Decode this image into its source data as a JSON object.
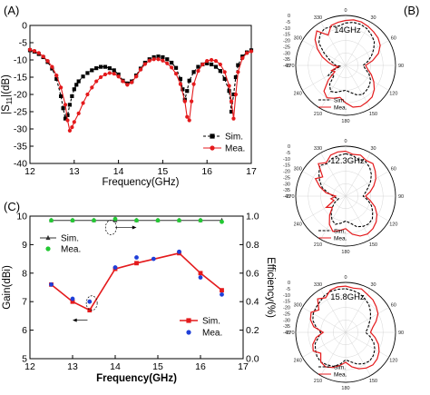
{
  "panels": {
    "a": "(A)",
    "b": "(B)",
    "c": "(C)"
  },
  "colors": {
    "sim": "#000000",
    "mea": "#e41a1c",
    "mea_gain": "#1f3fd8",
    "mea_eff": "#22c832",
    "sim_eff": "#333333"
  },
  "chart_data": [
    {
      "type": "line",
      "panel": "(A)",
      "xlabel": "Frequency(GHz)",
      "ylabel": "|S11|(dB)",
      "ylabel_main": "|S",
      "ylabel_sub": "11",
      "ylabel_tail": "|(dB)",
      "xlim": [
        12,
        17
      ],
      "ylim": [
        -40,
        0
      ],
      "xticks": [
        "12",
        "13",
        "14",
        "15",
        "16",
        "17"
      ],
      "yticks": [
        "0",
        "-5",
        "-10",
        "-15",
        "-20",
        "-25",
        "-30",
        "-35",
        "-40"
      ],
      "legend": "bottom-right",
      "series": [
        {
          "name": "Sim.",
          "marker": "square",
          "x": [
            12.0,
            12.1,
            12.2,
            12.3,
            12.4,
            12.5,
            12.6,
            12.7,
            12.75,
            12.8,
            12.85,
            12.9,
            12.95,
            13.0,
            13.05,
            13.1,
            13.2,
            13.3,
            13.4,
            13.5,
            13.6,
            13.7,
            13.8,
            13.9,
            14.0,
            14.1,
            14.2,
            14.3,
            14.4,
            14.5,
            14.6,
            14.7,
            14.8,
            14.9,
            15.0,
            15.1,
            15.2,
            15.3,
            15.4,
            15.45,
            15.5,
            15.55,
            15.6,
            15.7,
            15.8,
            15.9,
            16.0,
            16.1,
            16.2,
            16.3,
            16.4,
            16.5,
            16.55,
            16.6,
            16.65,
            16.7,
            16.8,
            16.9,
            17.0
          ],
          "y": [
            -7.2,
            -7.6,
            -8.3,
            -9.2,
            -10.6,
            -12.5,
            -15.5,
            -20.5,
            -24.0,
            -27.0,
            -26.0,
            -23.0,
            -20.5,
            -18.5,
            -17.2,
            -16.2,
            -14.8,
            -13.8,
            -13.0,
            -12.4,
            -12.0,
            -12.0,
            -12.4,
            -13.0,
            -14.2,
            -16.0,
            -16.8,
            -16.2,
            -14.5,
            -12.5,
            -10.8,
            -9.8,
            -9.2,
            -9.0,
            -9.2,
            -9.8,
            -10.8,
            -12.3,
            -15.5,
            -18.5,
            -21.5,
            -19.0,
            -16.0,
            -13.5,
            -12.0,
            -11.3,
            -11.0,
            -11.3,
            -12.0,
            -13.2,
            -15.5,
            -19.0,
            -25.0,
            -20.0,
            -15.0,
            -11.5,
            -9.0,
            -7.8,
            -7.2
          ]
        },
        {
          "name": "Mea.",
          "marker": "circle",
          "x": [
            12.0,
            12.1,
            12.2,
            12.3,
            12.4,
            12.5,
            12.6,
            12.7,
            12.8,
            12.85,
            12.9,
            12.95,
            13.0,
            13.1,
            13.2,
            13.3,
            13.4,
            13.5,
            13.6,
            13.7,
            13.8,
            13.9,
            14.0,
            14.1,
            14.2,
            14.3,
            14.4,
            14.5,
            14.6,
            14.7,
            14.8,
            14.9,
            15.0,
            15.1,
            15.2,
            15.3,
            15.4,
            15.5,
            15.55,
            15.6,
            15.65,
            15.7,
            15.8,
            15.9,
            16.0,
            16.1,
            16.2,
            16.3,
            16.4,
            16.5,
            16.55,
            16.6,
            16.65,
            16.7,
            16.8,
            16.9,
            17.0
          ],
          "y": [
            -7.0,
            -7.4,
            -8.0,
            -9.0,
            -10.3,
            -12.0,
            -14.5,
            -18.0,
            -23.0,
            -27.5,
            -30.5,
            -29.5,
            -28.0,
            -25.5,
            -22.5,
            -20.0,
            -18.0,
            -16.2,
            -15.0,
            -14.2,
            -13.8,
            -14.0,
            -14.8,
            -16.2,
            -17.2,
            -16.5,
            -14.8,
            -12.8,
            -11.2,
            -10.2,
            -9.8,
            -9.8,
            -10.2,
            -11.0,
            -12.2,
            -14.0,
            -17.0,
            -22.0,
            -26.5,
            -27.5,
            -22.0,
            -17.0,
            -13.2,
            -11.3,
            -10.3,
            -10.0,
            -10.3,
            -11.3,
            -13.5,
            -17.5,
            -22.0,
            -27.0,
            -20.0,
            -13.5,
            -9.5,
            -8.0,
            -7.5
          ]
        }
      ]
    },
    {
      "type": "line",
      "panel": "(C)",
      "xlabel": "Frequency(GHz)",
      "ylabel": "Gain(dBi)",
      "ylabel_right": "Efficiency(%)",
      "xlim": [
        12,
        17
      ],
      "ylim": [
        5,
        10
      ],
      "ylim_right": [
        0.0,
        1.0
      ],
      "xticks": [
        "12",
        "13",
        "14",
        "15",
        "16",
        "17"
      ],
      "yticks": [
        "10",
        "9",
        "8",
        "7",
        "6",
        "5"
      ],
      "yticks_right": [
        "1.0",
        "0.8",
        "0.6",
        "0.4",
        "0.2",
        "0.0"
      ],
      "legend_gain": "bottom-right",
      "legend_eff": "top-left",
      "series": [
        {
          "name": "Sim.",
          "axis": "left",
          "marker": "square",
          "x": [
            12.5,
            13.0,
            13.4,
            14.0,
            14.5,
            15.5,
            16.0,
            16.5
          ],
          "y": [
            7.6,
            7.0,
            6.7,
            8.15,
            8.35,
            8.7,
            8.0,
            7.4
          ]
        },
        {
          "name": "Mea.",
          "axis": "left",
          "marker": "circle",
          "x": [
            12.5,
            13.0,
            13.4,
            14.0,
            14.5,
            14.9,
            15.5,
            16.0,
            16.5
          ],
          "y": [
            7.6,
            7.1,
            7.0,
            8.2,
            8.55,
            8.5,
            8.75,
            7.85,
            7.25
          ]
        },
        {
          "name": "Sim.",
          "axis": "right",
          "marker": "triangle",
          "x": [
            12.5,
            13.0,
            13.5,
            14.0,
            14.5,
            15.0,
            15.5,
            16.0,
            16.5
          ],
          "y": [
            0.97,
            0.97,
            0.97,
            0.97,
            0.97,
            0.97,
            0.97,
            0.97,
            0.97
          ]
        },
        {
          "name": "Mea.",
          "axis": "right",
          "marker": "circle",
          "x": [
            12.5,
            13.0,
            13.5,
            14.0,
            14.5,
            15.0,
            15.5,
            16.0,
            16.5
          ],
          "y": [
            0.97,
            0.97,
            0.97,
            0.98,
            0.97,
            0.97,
            0.97,
            0.97,
            0.96
          ]
        }
      ]
    },
    {
      "type": "polar",
      "panel": "(B)",
      "title": "14GHz",
      "rlim": [
        -40,
        0
      ],
      "rticks": [
        "0",
        "-5",
        "-10",
        "-15",
        "-20",
        "-25",
        "-30",
        "-35",
        "-40"
      ],
      "angle_ticks": [
        "0",
        "30",
        "60",
        "90",
        "120",
        "150",
        "180",
        "210",
        "240",
        "270",
        "300",
        "330"
      ],
      "series": [
        {
          "name": "Sim.",
          "angles": [
            0,
            10,
            20,
            30,
            40,
            50,
            60,
            70,
            80,
            90,
            100,
            110,
            120,
            130,
            140,
            150,
            160,
            170,
            180,
            190,
            200,
            210,
            220,
            230,
            240,
            250,
            260,
            270,
            280,
            290,
            300,
            310,
            320,
            330,
            340,
            350
          ],
          "values": [
            -6,
            -5,
            -5,
            -6,
            -8,
            -10,
            -14,
            -18,
            -22,
            -26,
            -24,
            -20,
            -17,
            -15,
            -14,
            -13,
            -15,
            -18,
            -20,
            -19,
            -17,
            -16,
            -20,
            -28,
            -24,
            -30,
            -36,
            -32,
            -30,
            -26,
            -20,
            -12,
            -8,
            -6,
            -7,
            -8
          ]
        },
        {
          "name": "Mea.",
          "angles": [
            0,
            10,
            20,
            30,
            40,
            50,
            60,
            70,
            80,
            90,
            100,
            110,
            120,
            130,
            140,
            150,
            160,
            170,
            180,
            190,
            200,
            210,
            220,
            230,
            240,
            250,
            260,
            270,
            280,
            290,
            300,
            310,
            320,
            330,
            340,
            350
          ],
          "values": [
            -4,
            -3,
            -3,
            -4,
            -5,
            -6,
            -8,
            -12,
            -18,
            -24,
            -22,
            -18,
            -14,
            -10,
            -7,
            -6,
            -5,
            -6,
            -10,
            -14,
            -12,
            -10,
            -13,
            -22,
            -30,
            -28,
            -34,
            -30,
            -26,
            -20,
            -14,
            -8,
            -4,
            -12,
            -6,
            -5
          ]
        }
      ]
    },
    {
      "type": "polar",
      "panel": "(B)",
      "title": "12.3GHz",
      "rlim": [
        -40,
        0
      ],
      "rticks": [
        "0",
        "-5",
        "-10",
        "-15",
        "-20",
        "-25",
        "-30",
        "-35",
        "-40"
      ],
      "angle_ticks": [
        "0",
        "30",
        "60",
        "90",
        "120",
        "150",
        "180",
        "210",
        "240",
        "270",
        "300",
        "330"
      ],
      "series": [
        {
          "name": "Sim.",
          "angles": [
            0,
            10,
            20,
            30,
            40,
            50,
            60,
            70,
            80,
            90,
            100,
            110,
            120,
            130,
            140,
            150,
            160,
            170,
            180,
            190,
            200,
            210,
            220,
            230,
            240,
            250,
            260,
            270,
            280,
            290,
            300,
            310,
            320,
            330,
            340,
            350
          ],
          "values": [
            -6,
            -7,
            -9,
            -8,
            -10,
            -13,
            -17,
            -21,
            -24,
            -26,
            -22,
            -18,
            -15,
            -12,
            -11,
            -12,
            -14,
            -18,
            -20,
            -18,
            -16,
            -18,
            -22,
            -26,
            -30,
            -34,
            -32,
            -30,
            -26,
            -20,
            -16,
            -12,
            -8,
            -10,
            -8,
            -7
          ]
        },
        {
          "name": "Mea.",
          "angles": [
            0,
            10,
            20,
            30,
            40,
            50,
            60,
            70,
            80,
            90,
            100,
            110,
            120,
            130,
            140,
            150,
            160,
            170,
            180,
            190,
            200,
            210,
            220,
            230,
            240,
            250,
            260,
            270,
            280,
            290,
            300,
            310,
            320,
            330,
            340,
            350
          ],
          "values": [
            -4,
            -6,
            -5,
            -7,
            -6,
            -9,
            -12,
            -16,
            -20,
            -24,
            -20,
            -15,
            -11,
            -8,
            -6,
            -5,
            -6,
            -9,
            -14,
            -12,
            -10,
            -14,
            -20,
            -26,
            -22,
            -30,
            -28,
            -32,
            -24,
            -18,
            -12,
            -16,
            -6,
            -9,
            -5,
            -4
          ]
        }
      ]
    },
    {
      "type": "polar",
      "panel": "(B)",
      "title": "15.8GHz",
      "rlim": [
        -40,
        0
      ],
      "rticks": [
        "0",
        "-5",
        "-10",
        "-15",
        "-20",
        "-25",
        "-30",
        "-35",
        "-40"
      ],
      "angle_ticks": [
        "0",
        "30",
        "60",
        "90",
        "120",
        "150",
        "180",
        "210",
        "240",
        "270",
        "300",
        "330"
      ],
      "series": [
        {
          "name": "Sim.",
          "angles": [
            0,
            10,
            20,
            30,
            40,
            50,
            60,
            70,
            80,
            90,
            100,
            110,
            120,
            130,
            140,
            150,
            160,
            170,
            180,
            190,
            200,
            210,
            220,
            230,
            240,
            250,
            260,
            270,
            280,
            290,
            300,
            310,
            320,
            330,
            340,
            350
          ],
          "values": [
            -5,
            -6,
            -7,
            -9,
            -11,
            -14,
            -17,
            -20,
            -22,
            -24,
            -20,
            -16,
            -13,
            -11,
            -10,
            -11,
            -13,
            -16,
            -18,
            -14,
            -11,
            -10,
            -9,
            -10,
            -12,
            -14,
            -18,
            -20,
            -16,
            -12,
            -10,
            -9,
            -8,
            -6,
            -5,
            -5
          ]
        },
        {
          "name": "Mea.",
          "angles": [
            0,
            10,
            20,
            30,
            40,
            50,
            60,
            70,
            80,
            90,
            100,
            110,
            120,
            130,
            140,
            150,
            160,
            170,
            180,
            190,
            200,
            210,
            220,
            230,
            240,
            250,
            260,
            270,
            280,
            290,
            300,
            310,
            320,
            330,
            340,
            350
          ],
          "values": [
            -3,
            -4,
            -3,
            -5,
            -6,
            -8,
            -10,
            -14,
            -18,
            -20,
            -16,
            -12,
            -9,
            -7,
            -6,
            -7,
            -9,
            -12,
            -16,
            -13,
            -10,
            -8,
            -9,
            -14,
            -10,
            -12,
            -16,
            -22,
            -14,
            -10,
            -8,
            -12,
            -5,
            -8,
            -4,
            -3
          ]
        }
      ]
    }
  ]
}
